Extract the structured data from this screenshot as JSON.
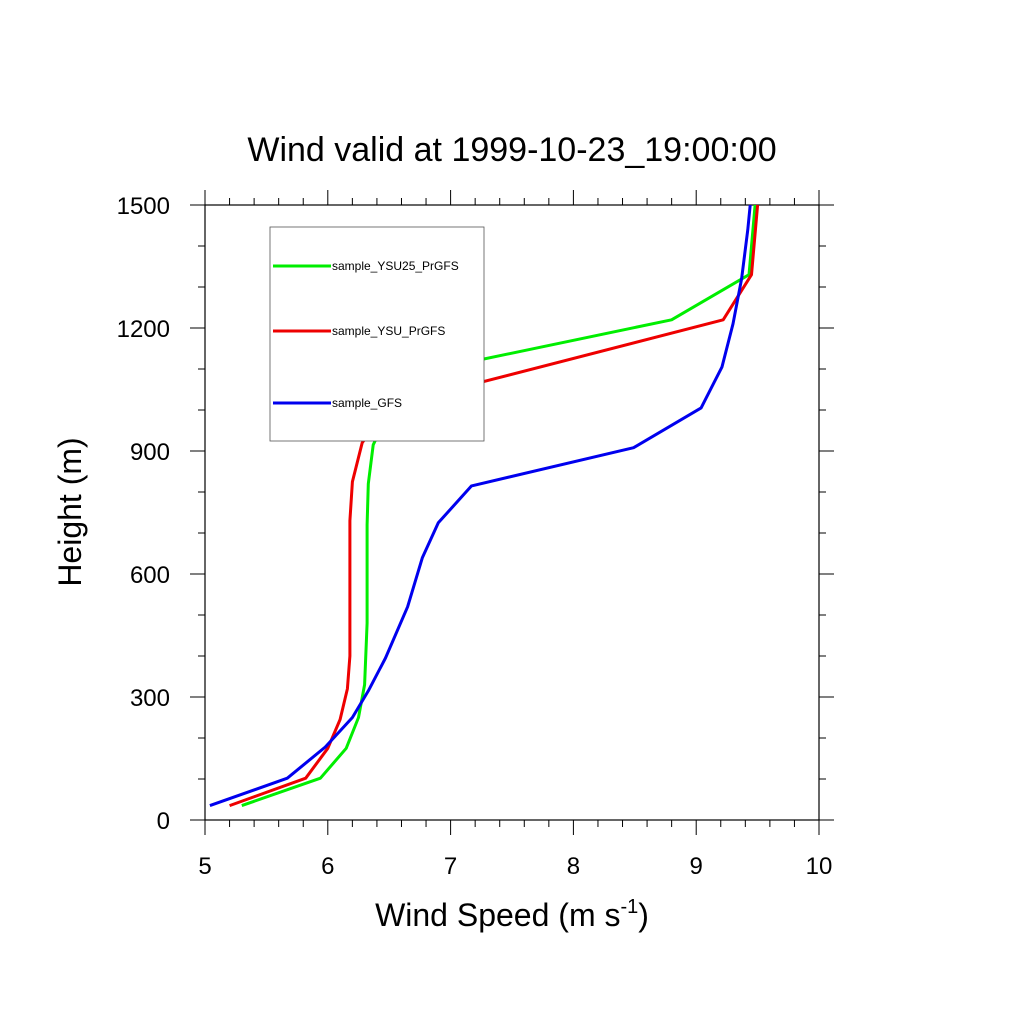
{
  "chart_data": {
    "type": "line",
    "title": "Wind valid at 1999-10-23_19:00:00",
    "xlabel": {
      "main": "Wind Speed (m s",
      "superscript": "-1",
      "suffix": ")"
    },
    "ylabel": "Height (m)",
    "xlim": [
      5,
      10
    ],
    "ylim": [
      0,
      1500
    ],
    "xticks": [
      5,
      6,
      7,
      8,
      9,
      10
    ],
    "yticks": [
      0,
      300,
      600,
      900,
      1200,
      1500
    ],
    "xticks_labels": [
      "5",
      "6",
      "7",
      "8",
      "9",
      "10"
    ],
    "yticks_labels": [
      "0",
      "300",
      "600",
      "900",
      "1200",
      "1500"
    ],
    "grid": false,
    "legend_position": "top-left",
    "series": [
      {
        "name": "sample_YSU25_PrGFS",
        "color": "#00ee00",
        "points": [
          [
            5.3,
            35
          ],
          [
            5.94,
            102
          ],
          [
            6.15,
            175
          ],
          [
            6.25,
            250
          ],
          [
            6.3,
            330
          ],
          [
            6.32,
            480
          ],
          [
            6.32,
            600
          ],
          [
            6.32,
            720
          ],
          [
            6.33,
            820
          ],
          [
            6.37,
            915
          ],
          [
            6.52,
            1010
          ],
          [
            7.12,
            1115
          ],
          [
            8.8,
            1220
          ],
          [
            9.43,
            1330
          ],
          [
            9.48,
            1500
          ]
        ]
      },
      {
        "name": "sample_YSU_PrGFS",
        "color": "#ee0000",
        "points": [
          [
            5.2,
            35
          ],
          [
            5.82,
            102
          ],
          [
            6.0,
            175
          ],
          [
            6.1,
            245
          ],
          [
            6.16,
            320
          ],
          [
            6.18,
            400
          ],
          [
            6.18,
            600
          ],
          [
            6.18,
            730
          ],
          [
            6.2,
            825
          ],
          [
            6.28,
            920
          ],
          [
            6.5,
            1010
          ],
          [
            9.22,
            1220
          ],
          [
            9.45,
            1330
          ],
          [
            9.5,
            1500
          ]
        ]
      },
      {
        "name": "sample_GFS",
        "color": "#0000ee",
        "points": [
          [
            5.04,
            35
          ],
          [
            5.67,
            102
          ],
          [
            5.98,
            178
          ],
          [
            6.2,
            250
          ],
          [
            6.33,
            315
          ],
          [
            6.47,
            395
          ],
          [
            6.65,
            520
          ],
          [
            6.77,
            640
          ],
          [
            6.9,
            725
          ],
          [
            7.17,
            815
          ],
          [
            8.49,
            908
          ],
          [
            9.04,
            1005
          ],
          [
            9.21,
            1105
          ],
          [
            9.3,
            1210
          ],
          [
            9.37,
            1320
          ],
          [
            9.42,
            1440
          ],
          [
            9.44,
            1500
          ]
        ]
      }
    ]
  }
}
